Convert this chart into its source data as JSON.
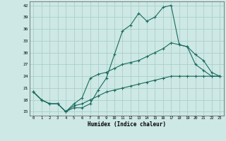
{
  "xlabel": "Humidex (Indice chaleur)",
  "background_color": "#cde8e5",
  "grid_color": "#aacfcb",
  "line_color": "#1a6b5e",
  "x_values": [
    0,
    1,
    2,
    3,
    4,
    5,
    6,
    7,
    8,
    9,
    10,
    11,
    12,
    13,
    14,
    15,
    16,
    17,
    18,
    19,
    20,
    21,
    22,
    23
  ],
  "series": [
    [
      20,
      18,
      17,
      17,
      15,
      16,
      16,
      17,
      20.5,
      23.5,
      29.5,
      35.5,
      37,
      40,
      38,
      39,
      41.5,
      42,
      32,
      31.5,
      27,
      25.5,
      24,
      24
    ],
    [
      20,
      18,
      17,
      17,
      15,
      17,
      18.5,
      23.5,
      24.5,
      25,
      26,
      27,
      27.5,
      28,
      29,
      30,
      31,
      32.5,
      32,
      31.5,
      29.5,
      28,
      25,
      24
    ],
    [
      20,
      18,
      17,
      17,
      15,
      16.5,
      17,
      18,
      19,
      20,
      20.5,
      21,
      21.5,
      22,
      22.5,
      23,
      23.5,
      24,
      24,
      24,
      24,
      24,
      24,
      24
    ]
  ],
  "ylim": [
    14,
    43
  ],
  "xlim": [
    -0.5,
    23.5
  ],
  "yticks": [
    15,
    18,
    21,
    24,
    27,
    30,
    33,
    36,
    39,
    42
  ],
  "xticks": [
    0,
    1,
    2,
    3,
    4,
    5,
    6,
    7,
    8,
    9,
    10,
    11,
    12,
    13,
    14,
    15,
    16,
    17,
    18,
    19,
    20,
    21,
    22,
    23
  ]
}
